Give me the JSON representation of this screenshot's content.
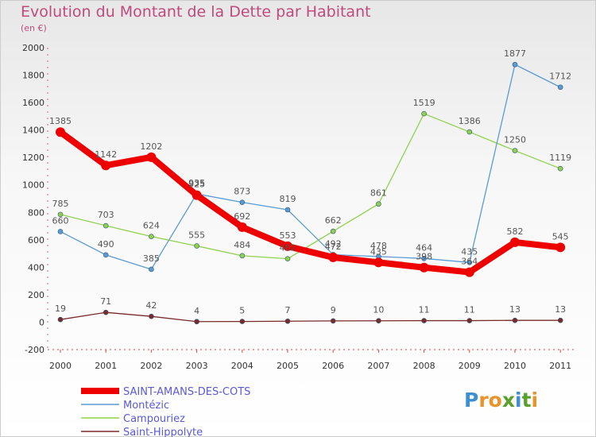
{
  "header": {
    "title": "Evolution du Montant de la Dette par Habitant",
    "subtitle": "(en €)"
  },
  "logo": {
    "text": "Proxiti",
    "colors": [
      "#3c8fd0",
      "#e8942a",
      "#e8942a",
      "#5aa02c",
      "#3c8fd0",
      "#5aa02c",
      "#e8942a"
    ]
  },
  "chart_data": {
    "type": "line",
    "x": [
      "2000",
      "2001",
      "2002",
      "2003",
      "2004",
      "2005",
      "2006",
      "2007",
      "2008",
      "2009",
      "2010",
      "2011"
    ],
    "ylim": [
      -200,
      2000
    ],
    "yticks": [
      -200,
      0,
      200,
      400,
      600,
      800,
      1000,
      1200,
      1400,
      1600,
      1800,
      2000
    ],
    "grid": false,
    "legend_position": "bottom-left",
    "series": [
      {
        "name": "SAINT-AMANS-DES-COTS",
        "color": "#ee0000",
        "values": [
          1385,
          1142,
          1202,
          925,
          692,
          553,
          472,
          435,
          398,
          364,
          582,
          545
        ],
        "labels": [
          "1385",
          "1142",
          "1202",
          "925",
          "692",
          "553",
          "472",
          "435",
          "398",
          "364",
          "582",
          "545"
        ]
      },
      {
        "name": "Montézic",
        "color": "#5a9bd4",
        "values": [
          660,
          490,
          385,
          935,
          873,
          819,
          492,
          478,
          464,
          435,
          1877,
          1712
        ],
        "labels": [
          "660",
          "490",
          "385",
          "935",
          "873",
          "819",
          "492",
          "478",
          "464",
          "435",
          "1877",
          "1712"
        ]
      },
      {
        "name": "Campouriez",
        "color": "#8fd14f",
        "values": [
          785,
          703,
          624,
          555,
          484,
          462,
          662,
          861,
          1519,
          1386,
          1250,
          1119
        ],
        "labels": [
          "785",
          "703",
          "624",
          "555",
          "484",
          "462",
          "662",
          "861",
          "1519",
          "1386",
          "1250",
          "1119"
        ]
      },
      {
        "name": "Saint-Hippolyte",
        "color": "#7a2a2a",
        "values": [
          19,
          71,
          42,
          4,
          5,
          7,
          9,
          10,
          11,
          11,
          13,
          13
        ],
        "labels": [
          "19",
          "71",
          "42",
          "4",
          "5",
          "7",
          "9",
          "10",
          "11",
          "11",
          "13",
          "13"
        ]
      }
    ]
  }
}
